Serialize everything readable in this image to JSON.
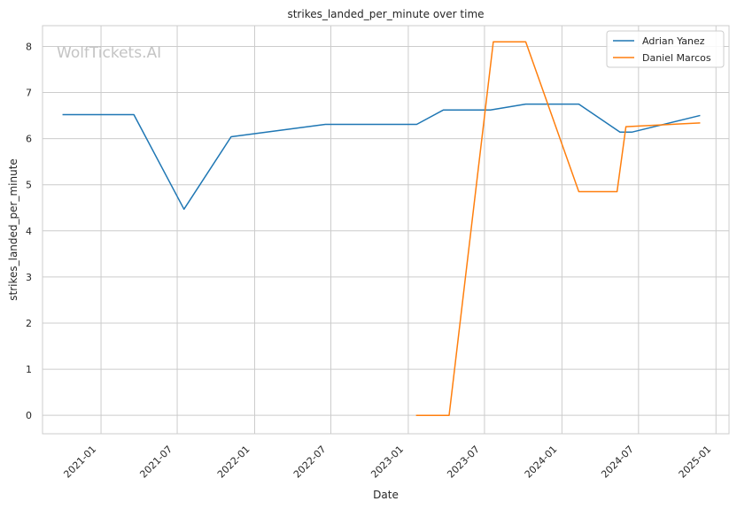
{
  "watermark": "WolfTickets.AI",
  "chart_data": {
    "type": "line",
    "title": "strikes_landed_per_minute over time",
    "xlabel": "Date",
    "ylabel": "strikes_landed_per_minute",
    "xlim": [
      "2020-08-15",
      "2025-02-01"
    ],
    "ylim": [
      -0.4,
      8.45
    ],
    "x_ticks": [
      "2021-01",
      "2021-07",
      "2022-01",
      "2022-07",
      "2023-01",
      "2023-07",
      "2024-01",
      "2024-07",
      "2025-01"
    ],
    "y_ticks": [
      0,
      1,
      2,
      3,
      4,
      5,
      6,
      7,
      8
    ],
    "grid": true,
    "legend_position": "top-right",
    "series": [
      {
        "name": "Adrian Yanez",
        "color": "#1f77b4",
        "points": [
          {
            "x": "2020-10-03",
            "y": 6.52
          },
          {
            "x": "2021-03-20",
            "y": 6.52
          },
          {
            "x": "2021-07-17",
            "y": 4.47
          },
          {
            "x": "2021-11-06",
            "y": 6.04
          },
          {
            "x": "2022-06-18",
            "y": 6.31
          },
          {
            "x": "2023-01-21",
            "y": 6.31
          },
          {
            "x": "2023-03-25",
            "y": 6.62
          },
          {
            "x": "2023-07-15",
            "y": 6.62
          },
          {
            "x": "2023-10-07",
            "y": 6.75
          },
          {
            "x": "2024-02-10",
            "y": 6.75
          },
          {
            "x": "2024-05-18",
            "y": 6.14
          },
          {
            "x": "2024-06-15",
            "y": 6.14
          },
          {
            "x": "2024-11-23",
            "y": 6.5
          }
        ]
      },
      {
        "name": "Daniel Marcos",
        "color": "#ff7f0e",
        "points": [
          {
            "x": "2023-01-21",
            "y": 0.0
          },
          {
            "x": "2023-04-08",
            "y": 0.0
          },
          {
            "x": "2023-07-22",
            "y": 8.1
          },
          {
            "x": "2023-10-07",
            "y": 8.1
          },
          {
            "x": "2024-02-10",
            "y": 4.85
          },
          {
            "x": "2024-05-11",
            "y": 4.85
          },
          {
            "x": "2024-06-01",
            "y": 6.26
          },
          {
            "x": "2024-11-23",
            "y": 6.34
          }
        ]
      }
    ]
  }
}
